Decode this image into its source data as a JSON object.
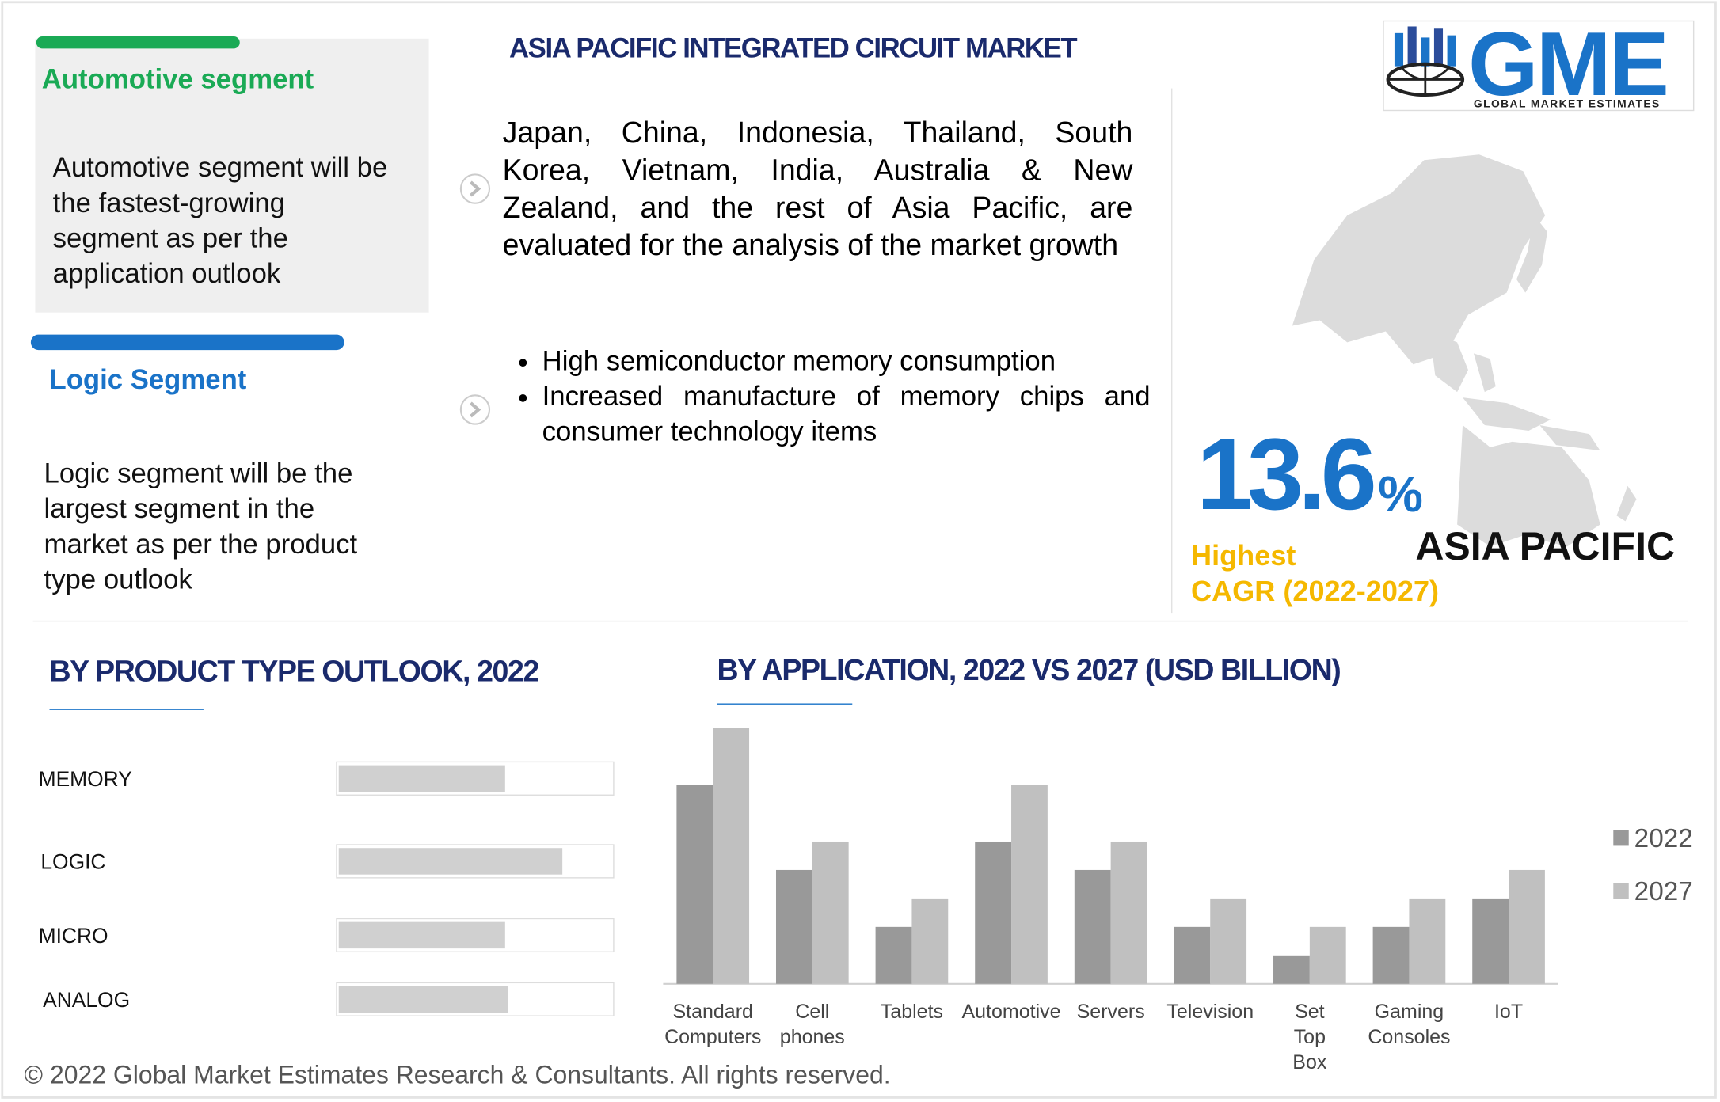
{
  "header": {
    "title": "ASIA PACIFIC INTEGRATED CIRCUIT MARKET",
    "logo": "GME",
    "logo_subtitle": "GLOBAL MARKET ESTIMATES"
  },
  "highlights": [
    {
      "title": "Automotive segment",
      "text": "Automotive segment will be the fastest-growing segment as per the application outlook"
    },
    {
      "title": "Logic Segment",
      "text": "Logic segment will be the largest segment in the market as per the product type outlook"
    }
  ],
  "scope": {
    "text": "Japan, China, Indonesia, Thailand, South Korea, Vietnam, India, Australia & New Zealand, and the rest of Asia Pacific, are evaluated for the analysis of the market growth",
    "bullets": [
      "High semiconductor memory consumption",
      "Increased manufacture of memory chips and consumer technology items"
    ]
  },
  "region": {
    "cagr": "13.6",
    "unit": "%",
    "label_lines": [
      "Highest",
      "CAGR (2022-2027)"
    ],
    "name": "ASIA PACIFIC"
  },
  "chart_data": [
    {
      "type": "bar",
      "orientation": "horizontal",
      "title": "BY PRODUCT TYPE OUTLOOK, 2022",
      "categories": [
        "MEMORY",
        "LOGIC",
        "MICRO",
        "ANALOG"
      ],
      "values": [
        61,
        82,
        61,
        62
      ],
      "xlim": [
        0,
        100
      ],
      "color": "#d0d0d0"
    },
    {
      "type": "bar",
      "title": "BY APPLICATION, 2022 VS 2027 (USD BILLION)",
      "categories": [
        "Standard Computers",
        "Cell phones",
        "Tablets",
        "Automotive",
        "Servers",
        "Television",
        "Set Top Box",
        "Gaming Consoles",
        "IoT"
      ],
      "series": [
        {
          "name": "2022",
          "color": "#999999",
          "values": [
            7,
            4,
            2,
            5,
            4,
            2,
            1,
            2,
            3
          ]
        },
        {
          "name": "2027",
          "color": "#c0c0c0",
          "values": [
            9,
            5,
            3,
            7,
            5,
            3,
            2,
            3,
            4
          ]
        }
      ],
      "ylim": [
        0,
        9
      ],
      "legend": "right"
    }
  ],
  "footer": "© 2022 Global Market Estimates Research & Consultants. All rights reserved."
}
